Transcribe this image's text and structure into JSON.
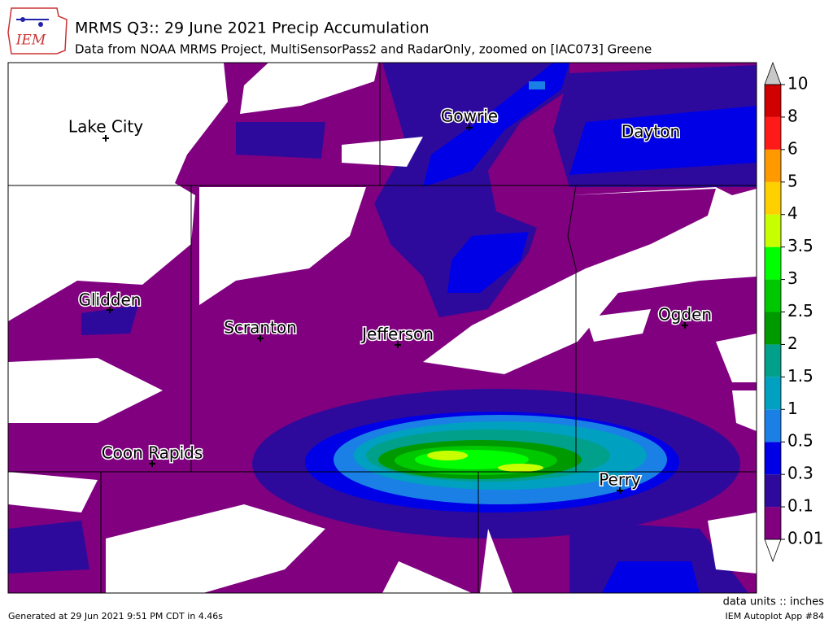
{
  "header": {
    "logo": "IEM",
    "title": "MRMS Q3:: 29 June 2021 Precip Accumulation",
    "subtitle": "Data from NOAA MRMS Project, MultiSensorPass2 and RadarOnly, zoomed on [IAC073] Greene"
  },
  "cities": [
    {
      "label": "Lake City"
    },
    {
      "label": "Gowrie"
    },
    {
      "label": "Dayton"
    },
    {
      "label": "Glidden"
    },
    {
      "label": "Scranton"
    },
    {
      "label": "Jefferson"
    },
    {
      "label": "Ogden"
    },
    {
      "label": "Coon Rapids"
    },
    {
      "label": "Perry"
    }
  ],
  "colorbar": {
    "levels": [
      0.01,
      0.1,
      0.3,
      0.5,
      1,
      1.5,
      2,
      2.5,
      3,
      3.5,
      4,
      5,
      6,
      8,
      10
    ],
    "colors": [
      "#800080",
      "#2e0a9c",
      "#0000e6",
      "#1a80e6",
      "#00a0c0",
      "#00a08a",
      "#009900",
      "#00c800",
      "#00ff00",
      "#c8ff00",
      "#ffd000",
      "#ff9900",
      "#ff1a1a",
      "#d00000"
    ],
    "under_color": "#ffffff",
    "over_color": "#c8c8c8"
  },
  "units_label": "data units :: inches",
  "footer": {
    "generated": "Generated at 29 Jun 2021 9:51 PM CDT in 4.46s",
    "app": "IEM Autoplot App #84"
  }
}
